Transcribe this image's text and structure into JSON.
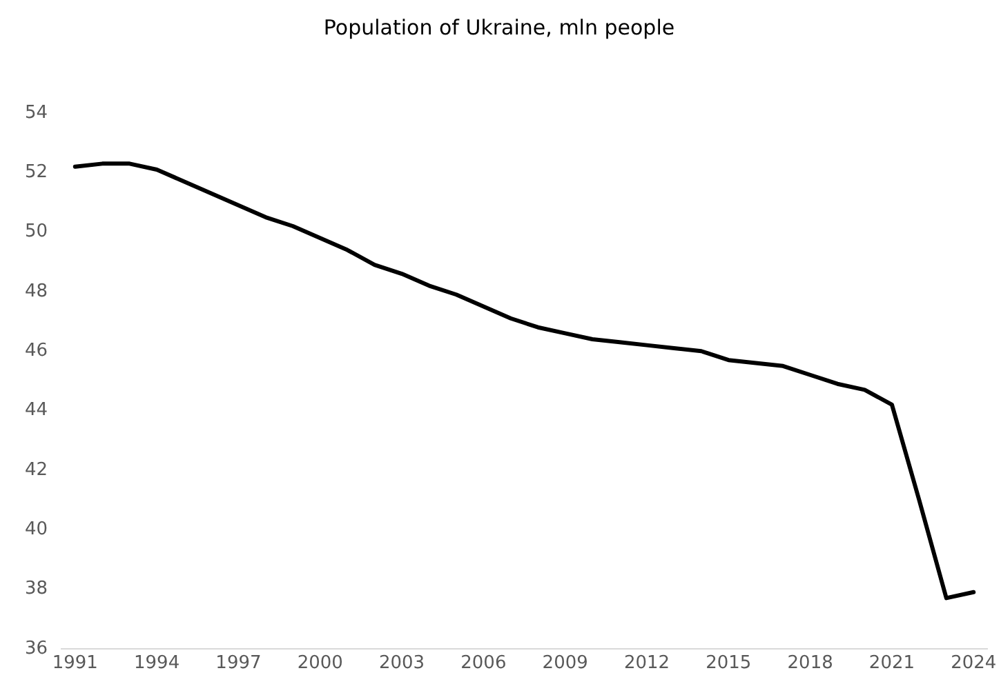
{
  "chart_data": {
    "type": "line",
    "title": "Population of Ukraine, mln people",
    "x": [
      1991,
      1992,
      1993,
      1994,
      1995,
      1996,
      1997,
      1998,
      1999,
      2000,
      2001,
      2002,
      2003,
      2004,
      2005,
      2006,
      2007,
      2008,
      2009,
      2010,
      2011,
      2012,
      2013,
      2014,
      2015,
      2016,
      2017,
      2018,
      2019,
      2020,
      2021,
      2022,
      2023,
      2024
    ],
    "series": [
      {
        "color": "#000000",
        "values": [
          52.2,
          52.3,
          52.3,
          52.1,
          51.7,
          51.3,
          50.9,
          50.5,
          50.2,
          49.8,
          49.4,
          48.9,
          48.6,
          48.2,
          47.9,
          47.5,
          47.1,
          46.8,
          46.6,
          46.4,
          46.3,
          46.2,
          46.1,
          46.0,
          45.7,
          45.6,
          45.5,
          45.2,
          44.9,
          44.7,
          44.2,
          41.0,
          37.7,
          37.9
        ]
      }
    ],
    "xlim": [
      1990.5,
      2024.5
    ],
    "xticks": [
      1991,
      1994,
      1997,
      2000,
      2003,
      2006,
      2009,
      2012,
      2015,
      2018,
      2021,
      2024
    ],
    "ylim": [
      36,
      54
    ],
    "yticks": [
      36,
      38,
      40,
      42,
      44,
      46,
      48,
      50,
      52,
      54
    ],
    "grid": false,
    "legend": false,
    "marker": "none",
    "line_style": "solid"
  }
}
